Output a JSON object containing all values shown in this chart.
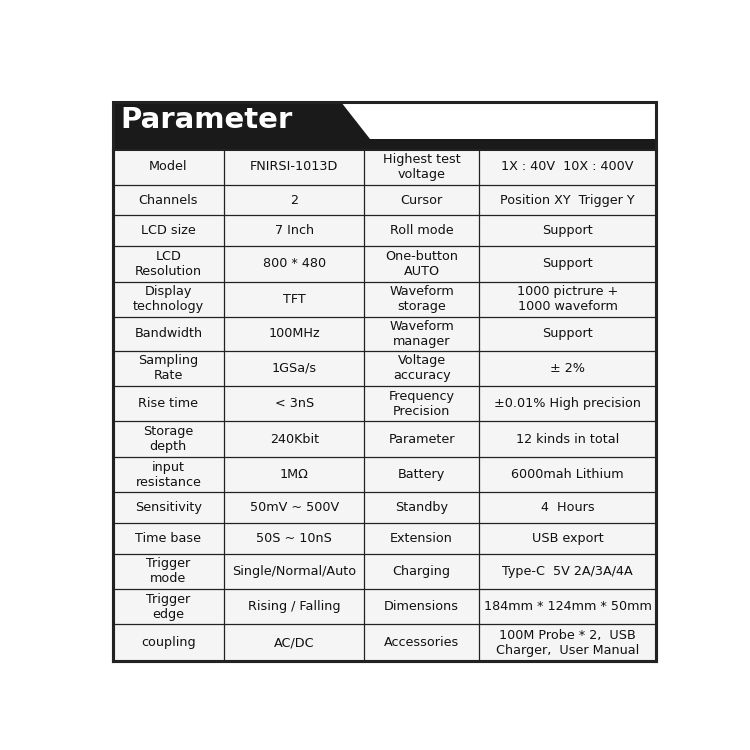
{
  "title": "Parameter",
  "title_bg": "#1a1a1a",
  "title_text_color": "#ffffff",
  "table_bg": "#f5f5f5",
  "border_color": "#222222",
  "rows": [
    [
      "Model",
      "FNIRSI-1013D",
      "Highest test\nvoltage",
      "1X : 40V  10X : 400V"
    ],
    [
      "Channels",
      "2",
      "Cursor",
      "Position XY  Trigger Y"
    ],
    [
      "LCD size",
      "7 Inch",
      "Roll mode",
      "Support"
    ],
    [
      "LCD\nResolution",
      "800 * 480",
      "One-button\nAUTO",
      "Support"
    ],
    [
      "Display\ntechnology",
      "TFT",
      "Waveform\nstorage",
      "1000 pictrure +\n1000 waveform"
    ],
    [
      "Bandwidth",
      "100MHz",
      "Waveform\nmanager",
      "Support"
    ],
    [
      "Sampling\nRate",
      "1GSa/s",
      "Voltage\naccuracy",
      "± 2%"
    ],
    [
      "Rise time",
      "< 3nS",
      "Frequency\nPrecision",
      "±0.01% High precision"
    ],
    [
      "Storage\ndepth",
      "240Kbit",
      "Parameter",
      "12 kinds in total"
    ],
    [
      "input\nresistance",
      "1MΩ",
      "Battery",
      "6000mah Lithium"
    ],
    [
      "Sensitivity",
      "50mV ~ 500V",
      "Standby",
      "4  Hours"
    ],
    [
      "Time base",
      "50S ~ 10nS",
      "Extension",
      "USB export"
    ],
    [
      "Trigger\nmode",
      "Single/Normal/Auto",
      "Charging",
      "Type-C  5V 2A/3A/4A"
    ],
    [
      "Trigger\nedge",
      "Rising / Falling",
      "Dimensions",
      "184mm * 124mm * 50mm"
    ],
    [
      "coupling",
      "AC/DC",
      "Accessories",
      "100M Probe * 2,  USB\nCharger,  User Manual"
    ]
  ],
  "col_ratios": [
    0.195,
    0.245,
    0.2,
    0.31
  ],
  "row_heights_rel": [
    1.15,
    1.0,
    1.0,
    1.15,
    1.15,
    1.1,
    1.15,
    1.15,
    1.15,
    1.15,
    1.0,
    1.0,
    1.15,
    1.15,
    1.2
  ],
  "cell_fontsize": 9.2,
  "title_fontsize": 21,
  "figsize": [
    7.5,
    7.5
  ],
  "dpi": 100
}
